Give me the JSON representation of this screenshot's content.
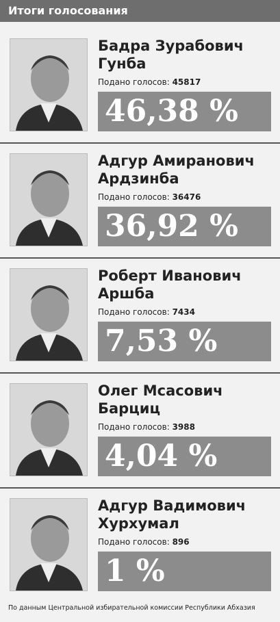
{
  "header": {
    "title": "Итоги голосования"
  },
  "votes_label": "Подано голосов:",
  "candidates": [
    {
      "name_line1": "Бадра Зурабович",
      "name_line2": "Гунба",
      "votes": 45817,
      "percent": "46,38 %"
    },
    {
      "name_line1": "Адгур Амиранович",
      "name_line2": "Ардзинба",
      "votes": 36476,
      "percent": "36,92 %"
    },
    {
      "name_line1": "Роберт Иванович",
      "name_line2": "Аршба",
      "votes": 7434,
      "percent": "7,53 %"
    },
    {
      "name_line1": "Олег Мсасович",
      "name_line2": "Барциц",
      "votes": 3988,
      "percent": "4,04 %"
    },
    {
      "name_line1": "Адгур Вадимович",
      "name_line2": "Хурхумал",
      "votes": 896,
      "percent": "1 %"
    }
  ],
  "footer": {
    "source": "По данным Центральной избирательной комиссии Республики Абхазия"
  }
}
